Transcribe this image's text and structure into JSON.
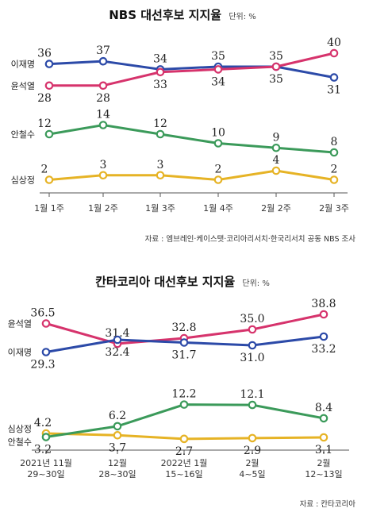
{
  "chart_data": [
    {
      "type": "line",
      "title": "NBS 대선후보 지지율",
      "unit": "단위: %",
      "categories": [
        "1월 1주",
        "1월 2주",
        "1월 3주",
        "1월 4주",
        "2월 2주",
        "2월 3주"
      ],
      "series": [
        {
          "name": "이재명",
          "color": "#2c4aa8",
          "values": [
            36,
            37,
            34,
            35,
            35,
            31
          ]
        },
        {
          "name": "윤석열",
          "color": "#d6336c",
          "values": [
            28,
            28,
            33,
            34,
            35,
            40
          ]
        },
        {
          "name": "안철수",
          "color": "#3b9a5a",
          "values": [
            12,
            14,
            12,
            10,
            9,
            8
          ]
        },
        {
          "name": "심상정",
          "color": "#e6b325",
          "values": [
            2,
            3,
            3,
            2,
            4,
            2
          ]
        }
      ],
      "source": "자료 : 엠브레인·케이스탯·코리아리서치·한국리서치 공동 NBS 조사"
    },
    {
      "type": "line",
      "title": "칸타코리아 대선후보 지지율",
      "unit": "단위: %",
      "categories": [
        "2021년 11월\n29~30일",
        "12월\n28~30일",
        "2022년 1월\n15~16일",
        "2월\n4~5일",
        "2월\n12~13일"
      ],
      "series": [
        {
          "name": "윤석열",
          "color": "#d6336c",
          "values": [
            36.5,
            31.4,
            32.8,
            35.0,
            38.8
          ]
        },
        {
          "name": "이재명",
          "color": "#2c4aa8",
          "values": [
            29.3,
            32.4,
            31.7,
            31.0,
            33.2
          ]
        },
        {
          "name": "심상정",
          "color": "#e6b325",
          "values": [
            4.2,
            3.7,
            2.7,
            2.9,
            3.1
          ]
        },
        {
          "name": "안철수",
          "color": "#3b9a5a",
          "values": [
            3.2,
            6.2,
            12.2,
            12.1,
            8.4
          ]
        }
      ],
      "source": "자료 : 칸타코리아"
    }
  ]
}
